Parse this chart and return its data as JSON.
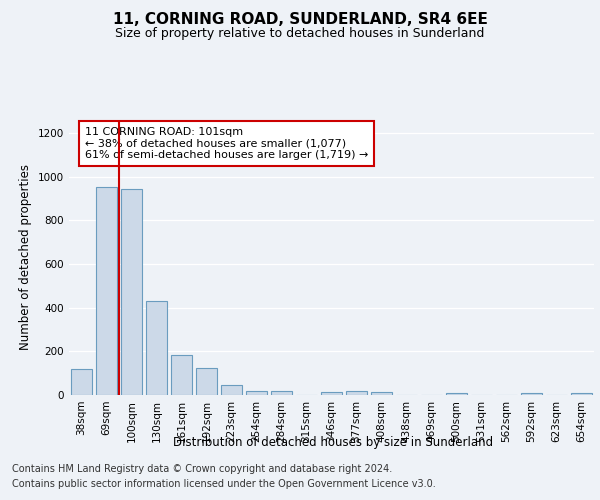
{
  "title": "11, CORNING ROAD, SUNDERLAND, SR4 6EE",
  "subtitle": "Size of property relative to detached houses in Sunderland",
  "xlabel": "Distribution of detached houses by size in Sunderland",
  "ylabel": "Number of detached properties",
  "categories": [
    "38sqm",
    "69sqm",
    "100sqm",
    "130sqm",
    "161sqm",
    "192sqm",
    "223sqm",
    "254sqm",
    "284sqm",
    "315sqm",
    "346sqm",
    "377sqm",
    "408sqm",
    "438sqm",
    "469sqm",
    "500sqm",
    "531sqm",
    "562sqm",
    "592sqm",
    "623sqm",
    "654sqm"
  ],
  "values": [
    120,
    955,
    945,
    430,
    185,
    125,
    45,
    20,
    20,
    0,
    15,
    20,
    12,
    0,
    0,
    8,
    0,
    0,
    8,
    0,
    8
  ],
  "bar_color": "#ccd9e8",
  "bar_edge_color": "#6a9cbf",
  "property_line_color": "#cc0000",
  "annotation_text": "11 CORNING ROAD: 101sqm\n← 38% of detached houses are smaller (1,077)\n61% of semi-detached houses are larger (1,719) →",
  "annotation_box_color": "#ffffff",
  "annotation_box_edge_color": "#cc0000",
  "ylim": [
    0,
    1260
  ],
  "yticks": [
    0,
    200,
    400,
    600,
    800,
    1000,
    1200
  ],
  "footer_line1": "Contains HM Land Registry data © Crown copyright and database right 2024.",
  "footer_line2": "Contains public sector information licensed under the Open Government Licence v3.0.",
  "bg_color": "#eef2f7",
  "title_fontsize": 11,
  "subtitle_fontsize": 9,
  "axis_label_fontsize": 8.5,
  "tick_fontsize": 7.5,
  "annotation_fontsize": 8,
  "footer_fontsize": 7
}
